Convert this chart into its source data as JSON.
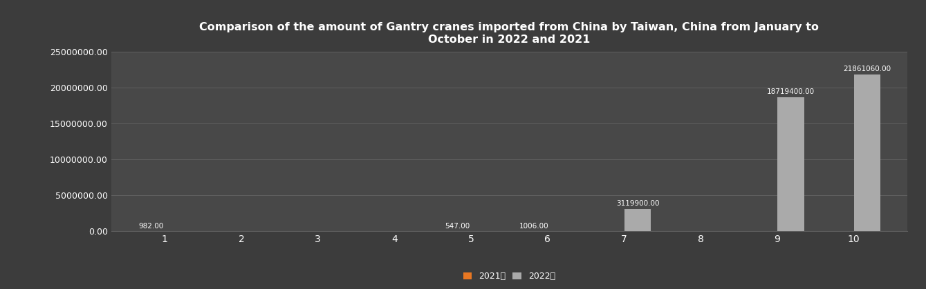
{
  "title": "Comparison of the amount of Gantry cranes imported from China by Taiwan, China from January to\nOctober in 2022 and 2021",
  "months": [
    1,
    2,
    3,
    4,
    5,
    6,
    7,
    8,
    9,
    10
  ],
  "data_2021": [
    982,
    0,
    0,
    0,
    547,
    1006,
    0,
    0,
    0,
    0
  ],
  "data_2022": [
    0,
    0,
    0,
    0,
    0,
    0,
    3119900,
    0,
    18719400,
    21861060
  ],
  "color_2021": "#E87722",
  "color_2022": "#AAAAAA",
  "bg_color": "#3C3C3C",
  "plot_bg_color": "#484848",
  "text_color": "#FFFFFF",
  "grid_color": "#606060",
  "legend_2021": "2021年",
  "legend_2022": "2022年",
  "ylim": [
    0,
    25000000
  ],
  "yticks": [
    0,
    5000000,
    10000000,
    15000000,
    20000000,
    25000000
  ],
  "bar_width": 0.35
}
